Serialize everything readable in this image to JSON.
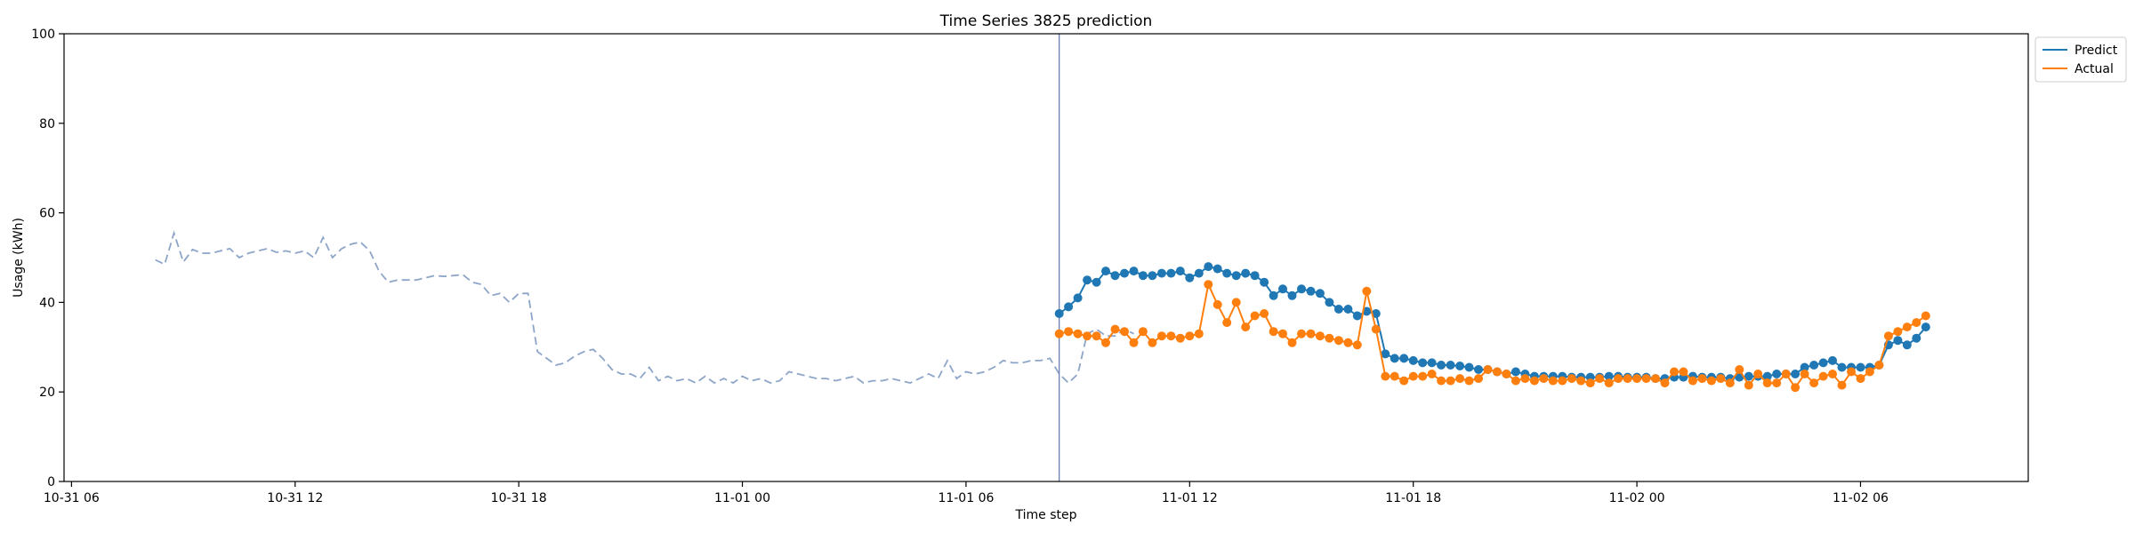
{
  "chart_data": {
    "type": "line",
    "title": "Time Series 3825 prediction",
    "xlabel": "Time step",
    "ylabel": "Usage (kWh)",
    "ylim": [
      0,
      100
    ],
    "xlim_hours": [
      -0.2,
      52.5
    ],
    "x_origin": "10-31 06:00",
    "x_ticks": [
      {
        "label": "10-31 06",
        "hour": 0
      },
      {
        "label": "10-31 12",
        "hour": 6
      },
      {
        "label": "10-31 18",
        "hour": 12
      },
      {
        "label": "11-01 00",
        "hour": 18
      },
      {
        "label": "11-01 06",
        "hour": 24
      },
      {
        "label": "11-01 12",
        "hour": 30
      },
      {
        "label": "11-01 18",
        "hour": 36
      },
      {
        "label": "11-02 00",
        "hour": 42
      },
      {
        "label": "11-02 06",
        "hour": 48
      }
    ],
    "y_ticks": [
      0,
      20,
      40,
      60,
      80,
      100
    ],
    "legend_position": "outside-top-right",
    "vline_hour": 26.5,
    "vline_color": "#6a7fb5",
    "history": {
      "start_hour": 2.25,
      "step_hours": 0.25,
      "color": "#8da5c8",
      "values": [
        49.5,
        48.5,
        55.5,
        49.0,
        51.8,
        51.0,
        51.0,
        51.5,
        52.0,
        50.0,
        51.0,
        51.5,
        52.0,
        51.2,
        51.5,
        51.0,
        51.5,
        50.0,
        54.5,
        50.0,
        52.0,
        53.0,
        53.5,
        51.5,
        47.0,
        44.5,
        45.0,
        45.0,
        45.0,
        45.5,
        46.0,
        45.8,
        46.0,
        46.2,
        44.5,
        44.0,
        41.5,
        42.0,
        40.0,
        42.0,
        42.0,
        29.0,
        27.5,
        26.0,
        26.5,
        28.0,
        29.0,
        29.5,
        27.5,
        25.0,
        24.0,
        24.0,
        23.0,
        25.5,
        22.5,
        23.5,
        22.5,
        23.0,
        22.0,
        23.5,
        22.0,
        23.0,
        22.0,
        23.5,
        22.5,
        23.0,
        22.0,
        22.5,
        24.5,
        24.0,
        23.5,
        23.0,
        23.0,
        22.5,
        23.0,
        23.5,
        22.0,
        22.5,
        22.5,
        23.0,
        22.5,
        22.0,
        23.0,
        24.0,
        23.0,
        27.0,
        23.0,
        24.5,
        24.0,
        24.5,
        25.5,
        27.0,
        26.5,
        26.5,
        27.0,
        27.0,
        27.5,
        24.0,
        22.0,
        24.0,
        33.0,
        34.0,
        32.5,
        32.5,
        34.0,
        33.0
      ]
    },
    "series": [
      {
        "name": "Predict",
        "color": "#1f77b4",
        "start_hour": 26.5,
        "step_hours": 0.25,
        "values": [
          37.5,
          39.0,
          41.0,
          45.0,
          44.5,
          47.0,
          46.0,
          46.5,
          47.0,
          46.0,
          46.0,
          46.5,
          46.5,
          47.0,
          45.5,
          46.5,
          48.0,
          47.5,
          46.5,
          46.0,
          46.5,
          46.0,
          44.5,
          41.5,
          43.0,
          41.5,
          43.0,
          42.5,
          42.0,
          40.0,
          38.5,
          38.5,
          37.0,
          38.0,
          37.5,
          28.5,
          27.5,
          27.5,
          27.0,
          26.5,
          26.5,
          26.0,
          26.0,
          25.8,
          25.5,
          25.0,
          25.0,
          24.5,
          24.0,
          24.5,
          24.0,
          23.5,
          23.5,
          23.5,
          23.5,
          23.3,
          23.3,
          23.3,
          23.3,
          23.5,
          23.5,
          23.3,
          23.3,
          23.3,
          23.0,
          23.0,
          23.3,
          23.3,
          23.5,
          23.3,
          23.3,
          23.3,
          23.0,
          23.3,
          23.5,
          23.5,
          23.5,
          24.0,
          24.0,
          24.0,
          25.5,
          26.0,
          26.5,
          27.0,
          25.5,
          25.5,
          25.5,
          25.5,
          26.0,
          30.5,
          31.5,
          30.5,
          32.0,
          34.5
        ]
      },
      {
        "name": "Actual",
        "color": "#ff7f0e",
        "start_hour": 26.5,
        "step_hours": 0.25,
        "values": [
          33.0,
          33.5,
          33.0,
          32.5,
          32.5,
          31.0,
          34.0,
          33.5,
          31.0,
          33.5,
          31.0,
          32.5,
          32.5,
          32.0,
          32.5,
          33.0,
          44.0,
          39.5,
          35.5,
          40.0,
          34.5,
          37.0,
          37.5,
          33.5,
          33.0,
          31.0,
          33.0,
          33.0,
          32.5,
          32.0,
          31.5,
          31.0,
          30.5,
          42.5,
          34.0,
          23.5,
          23.5,
          22.5,
          23.5,
          23.5,
          24.0,
          22.5,
          22.5,
          23.0,
          22.5,
          23.0,
          25.0,
          24.5,
          24.0,
          22.5,
          23.0,
          22.5,
          23.0,
          22.5,
          22.5,
          23.0,
          22.5,
          22.0,
          23.0,
          22.0,
          23.0,
          23.0,
          23.0,
          23.0,
          23.0,
          22.0,
          24.5,
          24.5,
          22.5,
          23.0,
          22.5,
          23.0,
          22.0,
          25.0,
          21.5,
          24.0,
          22.0,
          22.0,
          24.0,
          21.0,
          24.0,
          22.0,
          23.5,
          24.0,
          21.5,
          24.5,
          23.0,
          24.5,
          26.0,
          32.5,
          33.5,
          34.5,
          35.5,
          37.0
        ]
      }
    ]
  }
}
